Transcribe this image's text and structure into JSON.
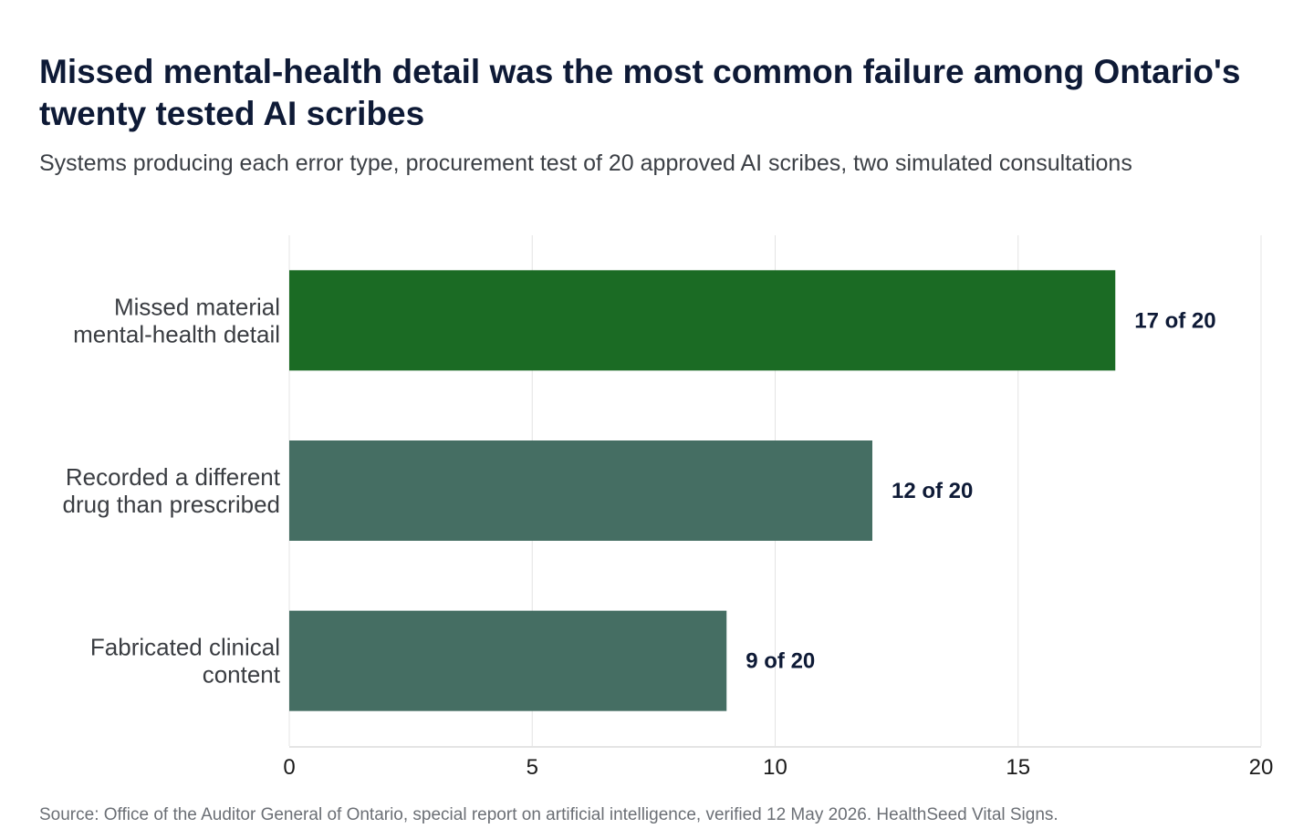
{
  "title": "Missed mental-health detail was the most common failure among Ontario's twenty tested AI scribes",
  "subtitle": "Systems producing each error type, procurement test of 20 approved AI scribes, two simulated consultations",
  "source": "Source: Office of the Auditor General of Ontario, special report on artificial intelligence, verified 12 May 2026. HealthSeed Vital Signs.",
  "chart_data": {
    "type": "bar",
    "orientation": "horizontal",
    "categories": [
      [
        "Missed material",
        "mental-health detail"
      ],
      [
        "Recorded a different",
        "drug than prescribed"
      ],
      [
        "Fabricated clinical",
        "content"
      ]
    ],
    "values": [
      17,
      12,
      9
    ],
    "data_labels": [
      "17 of 20",
      "12 of 20",
      "9 of 20"
    ],
    "bar_colors": [
      "#1b6b24",
      "#456e63",
      "#456e63"
    ],
    "xlim": [
      0,
      20
    ],
    "x_ticks": [
      0,
      5,
      10,
      15,
      20
    ],
    "grid": true,
    "legend": "none",
    "xlabel": "",
    "ylabel": ""
  }
}
